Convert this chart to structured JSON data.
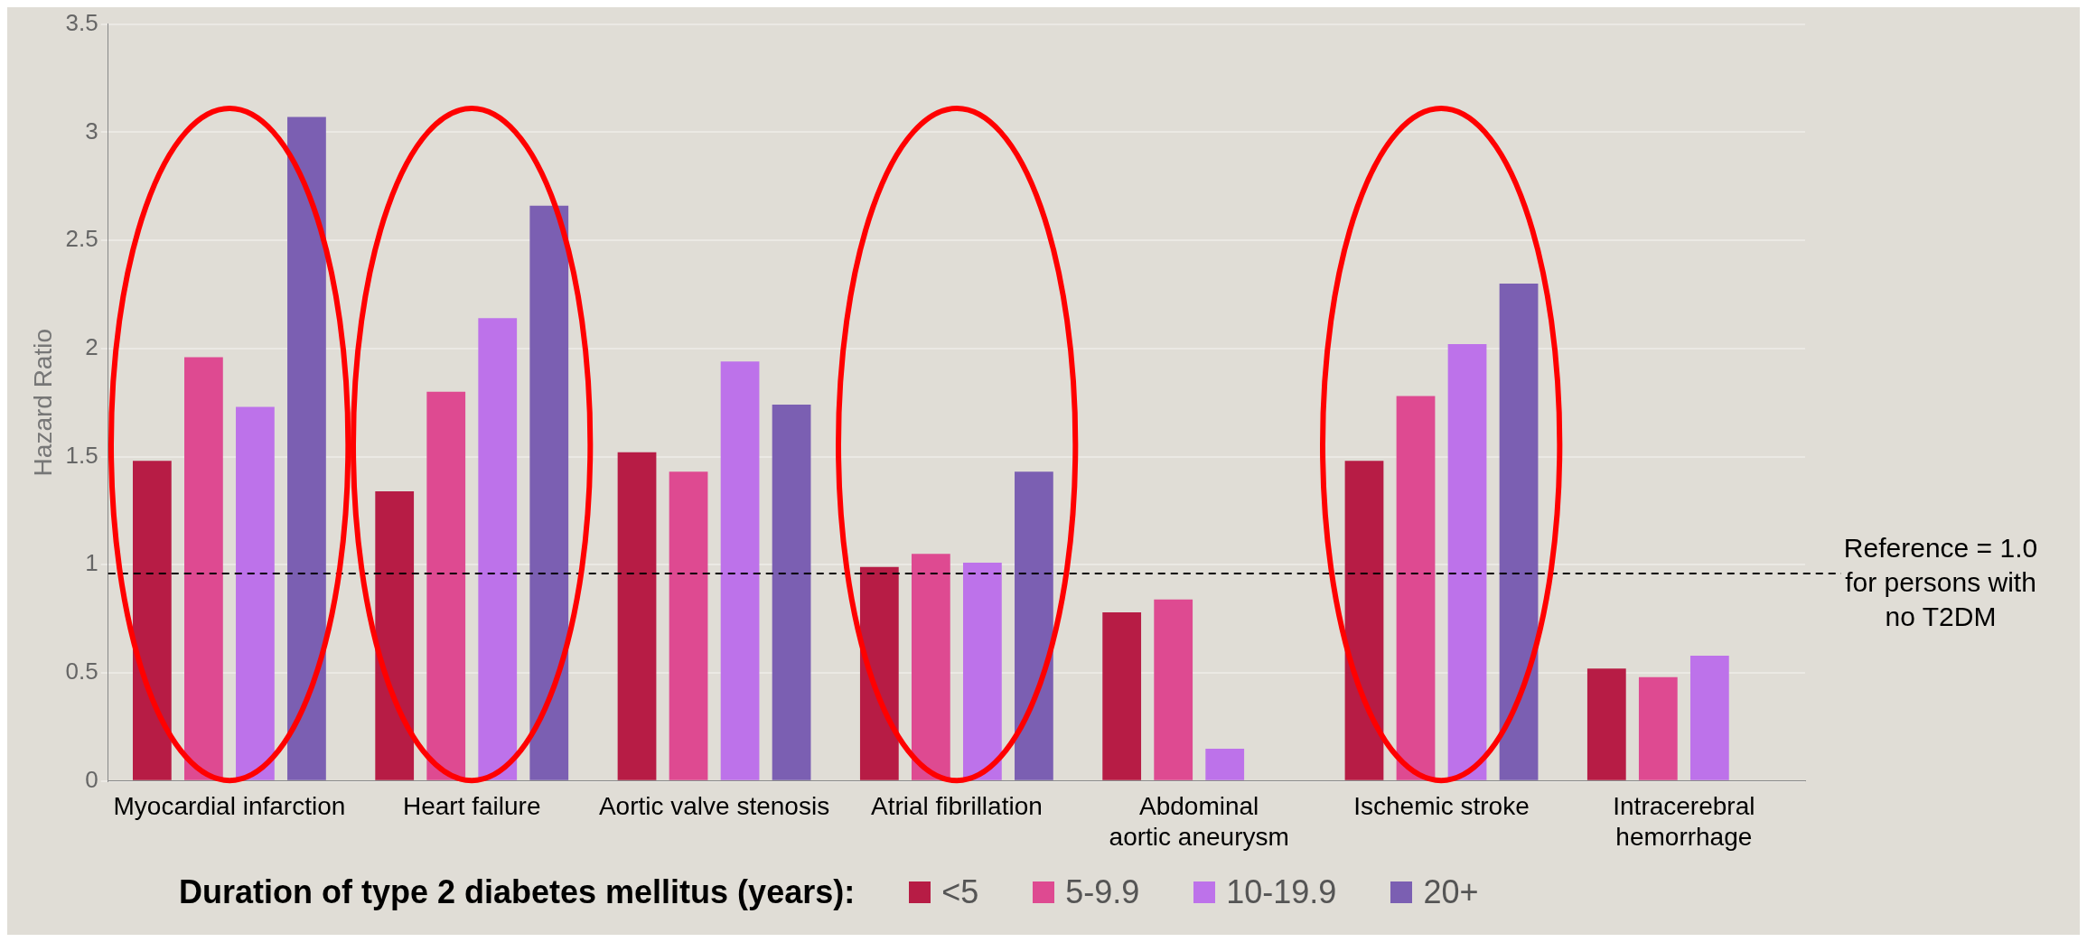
{
  "chart_data": {
    "type": "bar",
    "ylabel": "Hazard Ratio",
    "legend_title": "Duration of type 2 diabetes mellitus (years):",
    "categories": [
      "Myocardial infarction",
      "Heart failure",
      "Aortic valve stenosis",
      "Atrial fibrillation",
      "Abdominal aortic aneurysm",
      "Ischemic stroke",
      "Intracerebral hemorrhage"
    ],
    "series": [
      {
        "name": "<5",
        "color": "#b71c45",
        "values": [
          1.48,
          1.34,
          1.52,
          0.99,
          0.78,
          1.48,
          0.52
        ]
      },
      {
        "name": "5-9.9",
        "color": "#de4a91",
        "values": [
          1.96,
          1.8,
          1.43,
          1.05,
          0.84,
          1.78,
          0.48
        ]
      },
      {
        "name": "10-19.9",
        "color": "#bd72ea",
        "values": [
          1.73,
          2.14,
          1.94,
          1.01,
          0.15,
          2.02,
          0.58
        ]
      },
      {
        "name": "20+",
        "color": "#7b5fb2",
        "values": [
          3.07,
          2.66,
          1.74,
          1.43,
          null,
          2.3,
          null
        ]
      }
    ],
    "ylim": [
      0,
      3.5
    ],
    "yticks": [
      0,
      0.5,
      1,
      1.5,
      2,
      2.5,
      3,
      3.5
    ],
    "grid": "y",
    "legend": "bottom",
    "ref_lines": [
      {
        "axis": "y",
        "value": 0.96,
        "label": "Reference = 1.0 for persons with no T2DM",
        "line_style": "dashed",
        "color": "#000000"
      }
    ]
  }
}
